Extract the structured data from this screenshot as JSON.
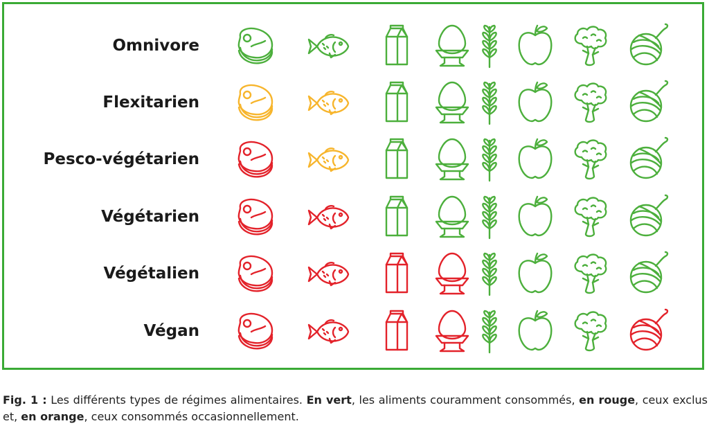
{
  "colors": {
    "green": "#4caf3c",
    "orange": "#f7b52c",
    "red": "#e3222a",
    "frame": "#3aaa35"
  },
  "foods": [
    "meat-icon",
    "fish-icon",
    "milk-carton-icon",
    "egg-icon",
    "wheat-icon",
    "apple-icon",
    "broccoli-icon",
    "yarn-ball-icon"
  ],
  "milk_label": "Milk",
  "diets": [
    {
      "label": "Omnivore",
      "status": [
        "green",
        "green",
        "green",
        "green",
        "green",
        "green",
        "green",
        "green"
      ]
    },
    {
      "label": "Flexitarien",
      "status": [
        "orange",
        "orange",
        "green",
        "green",
        "green",
        "green",
        "green",
        "green"
      ]
    },
    {
      "label": "Pesco-végétarien",
      "status": [
        "red",
        "orange",
        "green",
        "green",
        "green",
        "green",
        "green",
        "green"
      ]
    },
    {
      "label": "Végétarien",
      "status": [
        "red",
        "red",
        "green",
        "green",
        "green",
        "green",
        "green",
        "green"
      ]
    },
    {
      "label": "Végétalien",
      "status": [
        "red",
        "red",
        "red",
        "red",
        "green",
        "green",
        "green",
        "green"
      ]
    },
    {
      "label": "Végan",
      "status": [
        "red",
        "red",
        "red",
        "red",
        "green",
        "green",
        "green",
        "red"
      ]
    }
  ],
  "caption": {
    "fig": "Fig. 1 :",
    "text1": " Les différents types de régimes alimentaires. ",
    "green_bold": "En vert",
    "text2": ", les aliments couramment consommés, ",
    "red_bold": "en rouge",
    "text3": ", ceux exclus et, ",
    "orange_bold": "en orange",
    "text4": ", ceux consommés occasionnellement."
  }
}
